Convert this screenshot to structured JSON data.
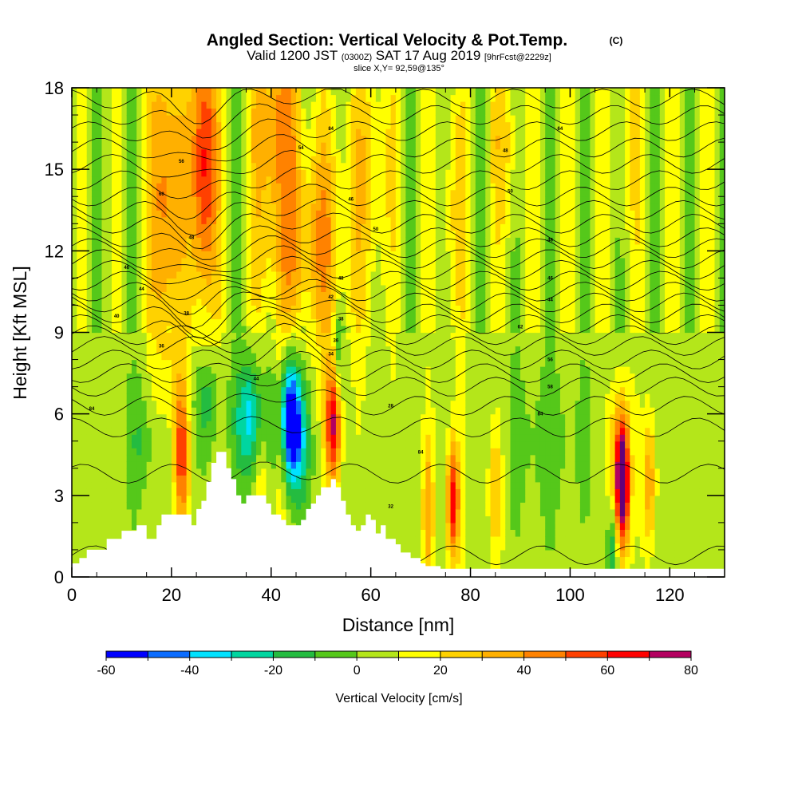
{
  "chart_data": {
    "type": "heatmap",
    "title": "Angled Section: Vertical Velocity & Pot.Temp.",
    "title_tag": "(C)",
    "subtitle": {
      "pre": "Valid 1200 JST",
      "zulu": "(0300Z)",
      "post": "SAT 17 Aug 2019",
      "fcst": "[9hrFcst@2229z]"
    },
    "slice": "slice X,Y= 92,59@135°",
    "xlabel": "Distance [nm]",
    "ylabel": "Height [Kft MSL]",
    "xlim": [
      0,
      131
    ],
    "ylim": [
      0,
      18
    ],
    "x_ticks": [
      "0",
      "20",
      "40",
      "60",
      "80",
      "100",
      "120"
    ],
    "y_ticks": [
      "0",
      "3",
      "6",
      "9",
      "12",
      "15",
      "18"
    ],
    "colorbar": {
      "label": "Vertical Velocity [cm/s]",
      "ticks": [
        "-60",
        "-40",
        "-20",
        "0",
        "20",
        "40",
        "60",
        "80"
      ],
      "bins": [
        -60,
        -50,
        -40,
        -30,
        -20,
        -10,
        0,
        10,
        20,
        30,
        40,
        50,
        60,
        70,
        80
      ],
      "colors": [
        "#0000ff",
        "#0a6cff",
        "#00e2ff",
        "#00d6a0",
        "#24bc40",
        "#55c81a",
        "#b4e61a",
        "#ffff00",
        "#ffd200",
        "#ffb000",
        "#ff8200",
        "#ff4000",
        "#ff0000",
        "#b40060",
        "#64007a"
      ]
    },
    "background_w": 5,
    "features": [
      {
        "x": 19.0,
        "z": 14.0,
        "w": 45,
        "sx": 2.2,
        "sz": 4.5
      },
      {
        "x": 26.5,
        "z": 15.2,
        "w": 65,
        "sx": 1.8,
        "sz": 3.8
      },
      {
        "x": 41.0,
        "z": 17.0,
        "w": 38,
        "sx": 3.2,
        "sz": 2.6
      },
      {
        "x": 43.0,
        "z": 12.0,
        "w": 25,
        "sx": 4.5,
        "sz": 2.5
      },
      {
        "x": 51.0,
        "z": 12.5,
        "w": 25,
        "sx": 3.5,
        "sz": 3.0
      },
      {
        "x": 60.0,
        "z": 15.0,
        "w": 20,
        "sx": 3.0,
        "sz": 4.0
      },
      {
        "x": 76.5,
        "z": 13.5,
        "w": 18,
        "sx": 2.0,
        "sz": 3.2
      },
      {
        "x": 87.0,
        "z": 16.0,
        "w": 18,
        "sx": 2.5,
        "sz": 2.5
      },
      {
        "x": 112.0,
        "z": 16.0,
        "w": 12,
        "sx": 3.0,
        "sz": 3.0
      },
      {
        "x": 22.0,
        "z": 4.5,
        "w": 50,
        "sx": 1.0,
        "sz": 2.0
      },
      {
        "x": 27.0,
        "z": 6.5,
        "w": -20,
        "sx": 2.0,
        "sz": 1.3
      },
      {
        "x": 36.0,
        "z": 5.8,
        "w": -42,
        "sx": 2.2,
        "sz": 1.6
      },
      {
        "x": 38.0,
        "z": 4.0,
        "w": 20,
        "sx": 1.0,
        "sz": 2.2
      },
      {
        "x": 42.0,
        "z": 5.5,
        "w": 30,
        "sx": 1.0,
        "sz": 2.5
      },
      {
        "x": 43.5,
        "z": 6.0,
        "w": -68,
        "sx": 1.7,
        "sz": 1.6
      },
      {
        "x": 45.0,
        "z": 4.8,
        "w": -30,
        "sx": 1.8,
        "sz": 1.6
      },
      {
        "x": 52.5,
        "z": 5.7,
        "w": 68,
        "sx": 1.1,
        "sz": 1.6
      },
      {
        "x": 53.5,
        "z": 8.0,
        "w": -25,
        "sx": 0.8,
        "sz": 1.2
      },
      {
        "x": 71.5,
        "z": 2.5,
        "w": 30,
        "sx": 0.8,
        "sz": 2.0
      },
      {
        "x": 76.5,
        "z": 2.8,
        "w": 62,
        "sx": 0.9,
        "sz": 1.6
      },
      {
        "x": 85.0,
        "z": 3.2,
        "w": 25,
        "sx": 1.0,
        "sz": 1.6
      },
      {
        "x": 110.0,
        "z": 4.5,
        "w": 38,
        "sx": 1.4,
        "sz": 1.8
      },
      {
        "x": 110.5,
        "z": 3.2,
        "w": 80,
        "sx": 0.9,
        "sz": 1.6
      },
      {
        "x": 108.5,
        "z": 1.2,
        "w": -25,
        "sx": 0.8,
        "sz": 1.0
      },
      {
        "x": 116.0,
        "z": 3.5,
        "w": 35,
        "sx": 0.9,
        "sz": 1.8
      },
      {
        "x": 14.0,
        "z": 5.0,
        "w": -15,
        "sx": 2.0,
        "sz": 1.5
      },
      {
        "x": 95.0,
        "z": 5.0,
        "w": -10,
        "sx": 6.0,
        "sz": 2.0
      }
    ],
    "terrain": [
      [
        0,
        0.5
      ],
      [
        1.5,
        0.7
      ],
      [
        3,
        1.0
      ],
      [
        7,
        1.4
      ],
      [
        10,
        1.7
      ],
      [
        13,
        1.9
      ],
      [
        15,
        1.4
      ],
      [
        17,
        1.9
      ],
      [
        18,
        2.3
      ],
      [
        23,
        2.3
      ],
      [
        24,
        1.9
      ],
      [
        25,
        2.5
      ],
      [
        26,
        2.8
      ],
      [
        27,
        3.5
      ],
      [
        28,
        4.2
      ],
      [
        29,
        4.6
      ],
      [
        31,
        4.0
      ],
      [
        32,
        3.6
      ],
      [
        33,
        3.0
      ],
      [
        34,
        2.7
      ],
      [
        35,
        3.0
      ],
      [
        38,
        3.0
      ],
      [
        39,
        2.7
      ],
      [
        40,
        2.3
      ],
      [
        42,
        2.1
      ],
      [
        43,
        1.9
      ],
      [
        46,
        2.1
      ],
      [
        47,
        2.5
      ],
      [
        48,
        2.7
      ],
      [
        49,
        3.0
      ],
      [
        50,
        3.3
      ],
      [
        52,
        3.6
      ],
      [
        53,
        3.3
      ],
      [
        54,
        2.8
      ],
      [
        55,
        2.3
      ],
      [
        56,
        1.9
      ],
      [
        57,
        1.7
      ],
      [
        58,
        1.9
      ],
      [
        59,
        2.3
      ],
      [
        60,
        2.1
      ],
      [
        61,
        1.6
      ],
      [
        62,
        1.9
      ],
      [
        63,
        1.4
      ],
      [
        65,
        1.2
      ],
      [
        66,
        0.9
      ],
      [
        68,
        0.7
      ],
      [
        70,
        0.5
      ],
      [
        71,
        0.4
      ],
      [
        74,
        0.3
      ],
      [
        131,
        0.3
      ]
    ],
    "theta_contours": {
      "levels": 27,
      "mid_z": [
        0.8,
        3.8,
        5.5,
        6.3,
        7.0,
        7.5,
        8.0,
        8.5,
        8.9,
        9.3,
        9.7,
        10.1,
        10.5,
        10.9,
        11.3,
        11.7,
        12.1,
        12.5,
        13.0,
        13.5,
        14.0,
        14.6,
        15.2,
        15.8,
        16.4,
        17.0,
        17.6
      ],
      "labels": [
        {
          "text": "84",
          "x": 4,
          "z": 6.2
        },
        {
          "text": "84",
          "x": 70,
          "z": 4.6
        },
        {
          "text": "28",
          "x": 64,
          "z": 6.3
        },
        {
          "text": "84",
          "x": 94,
          "z": 6.0
        },
        {
          "text": "58",
          "x": 96,
          "z": 7.0
        },
        {
          "text": "56",
          "x": 96,
          "z": 8.0
        },
        {
          "text": "62",
          "x": 90,
          "z": 9.2
        },
        {
          "text": "44",
          "x": 96,
          "z": 10.2
        },
        {
          "text": "46",
          "x": 96,
          "z": 11.0
        },
        {
          "text": "48",
          "x": 96,
          "z": 12.4
        },
        {
          "text": "50",
          "x": 88,
          "z": 14.2
        },
        {
          "text": "48",
          "x": 87,
          "z": 15.7
        },
        {
          "text": "64",
          "x": 98,
          "z": 16.5
        },
        {
          "text": "84",
          "x": 52,
          "z": 16.5
        },
        {
          "text": "54",
          "x": 46,
          "z": 15.8
        },
        {
          "text": "56",
          "x": 22,
          "z": 15.3
        },
        {
          "text": "60",
          "x": 18,
          "z": 14.1
        },
        {
          "text": "48",
          "x": 24,
          "z": 12.5
        },
        {
          "text": "46",
          "x": 11,
          "z": 11.4
        },
        {
          "text": "44",
          "x": 14,
          "z": 10.6
        },
        {
          "text": "40",
          "x": 9,
          "z": 9.6
        },
        {
          "text": "38",
          "x": 23,
          "z": 9.7
        },
        {
          "text": "36",
          "x": 18,
          "z": 8.5
        },
        {
          "text": "44",
          "x": 37,
          "z": 7.3
        },
        {
          "text": "50",
          "x": 61,
          "z": 12.8
        },
        {
          "text": "46",
          "x": 56,
          "z": 13.9
        },
        {
          "text": "48",
          "x": 54,
          "z": 11.0
        },
        {
          "text": "42",
          "x": 52,
          "z": 10.3
        },
        {
          "text": "38",
          "x": 54,
          "z": 9.5
        },
        {
          "text": "36",
          "x": 53,
          "z": 8.7
        },
        {
          "text": "34",
          "x": 52,
          "z": 8.2
        },
        {
          "text": "32",
          "x": 64,
          "z": 2.6
        }
      ]
    }
  }
}
